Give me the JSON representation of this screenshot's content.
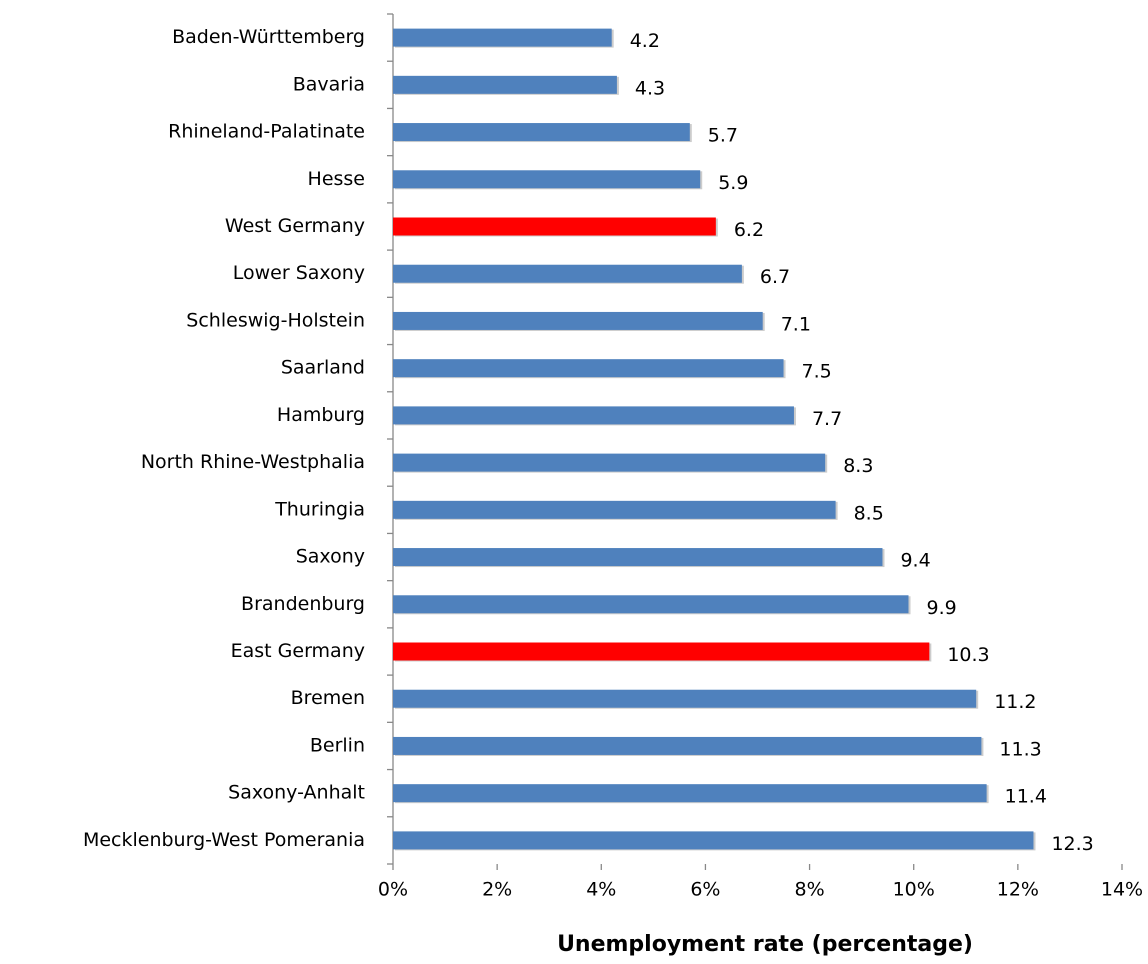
{
  "chart_data": {
    "type": "barh",
    "x_label": "Unemployment rate (percentage)",
    "categories": [
      "Baden-Württemberg",
      "Bavaria",
      "Rhineland-Palatinate",
      "Hesse",
      "West Germany",
      "Lower Saxony",
      "Schleswig-Holstein",
      "Saarland",
      "Hamburg",
      "North Rhine-Westphalia",
      "Thuringia",
      "Saxony",
      "Brandenburg",
      "East Germany",
      "Bremen",
      "Berlin",
      "Saxony-Anhalt",
      "Mecklenburg-West Pomerania"
    ],
    "values": [
      4.2,
      4.3,
      5.7,
      5.9,
      6.2,
      6.7,
      7.1,
      7.5,
      7.7,
      8.3,
      8.5,
      9.4,
      9.9,
      10.3,
      11.2,
      11.3,
      11.4,
      12.3
    ],
    "colors": [
      "#4f81bd",
      "#4f81bd",
      "#4f81bd",
      "#4f81bd",
      "#ff0000",
      "#4f81bd",
      "#4f81bd",
      "#4f81bd",
      "#4f81bd",
      "#4f81bd",
      "#4f81bd",
      "#4f81bd",
      "#4f81bd",
      "#ff0000",
      "#4f81bd",
      "#4f81bd",
      "#4f81bd",
      "#4f81bd"
    ],
    "xlim": [
      0,
      14
    ],
    "xticks": [
      {
        "value": 0,
        "label": "0%"
      },
      {
        "value": 2,
        "label": "2%"
      },
      {
        "value": 4,
        "label": "4%"
      },
      {
        "value": 6,
        "label": "6%"
      },
      {
        "value": 8,
        "label": "8%"
      },
      {
        "value": 10,
        "label": "10%"
      },
      {
        "value": 12,
        "label": "12%"
      },
      {
        "value": 14,
        "label": "14%"
      }
    ]
  }
}
